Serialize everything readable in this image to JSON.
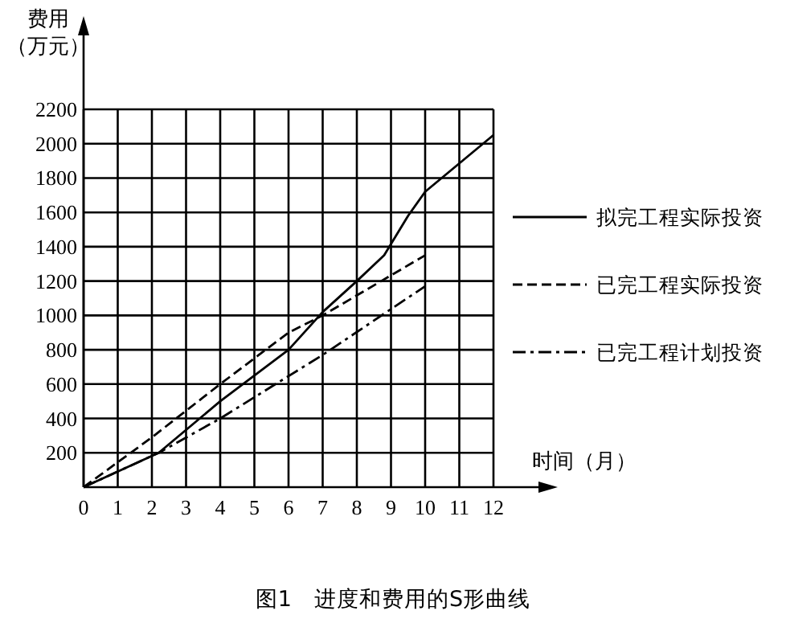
{
  "chart_data": {
    "type": "line",
    "title": "图1　进度和费用的S形曲线",
    "xlabel": "时间（月）",
    "ylabel": "费用（万元）",
    "xlim": [
      0,
      12
    ],
    "ylim": [
      0,
      2200
    ],
    "xticks": [
      0,
      1,
      2,
      3,
      4,
      5,
      6,
      7,
      8,
      9,
      10,
      11,
      12
    ],
    "yticks": [
      200,
      400,
      600,
      800,
      1000,
      1200,
      1400,
      1600,
      1800,
      2000,
      2200
    ],
    "grid": true,
    "legend": "right",
    "marker": "none",
    "series": [
      {
        "name": "拟完工程实际投资",
        "color": "#000000",
        "line_style": "solid",
        "x": [
          0,
          2.2,
          4,
          6,
          7,
          8,
          8.8,
          9.5,
          10,
          12
        ],
        "values": [
          0,
          200,
          500,
          800,
          1020,
          1200,
          1350,
          1580,
          1720,
          2050
        ]
      },
      {
        "name": "已完工程实际投资",
        "color": "#000000",
        "line_style": "dashed",
        "x": [
          0,
          2,
          4,
          6,
          7,
          10
        ],
        "values": [
          0,
          290,
          600,
          900,
          1000,
          1350
        ]
      },
      {
        "name": "已完工程计划投资",
        "color": "#000000",
        "line_style": "dashdot",
        "x": [
          0,
          2.2,
          4,
          7,
          10
        ],
        "values": [
          0,
          200,
          400,
          770,
          1170
        ]
      }
    ]
  }
}
